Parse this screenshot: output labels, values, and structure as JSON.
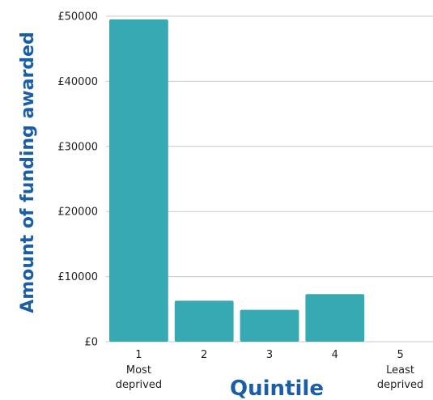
{
  "colors": {
    "bar": "#36a9b3",
    "axis_title": "#1a5ea8",
    "gridline": "#c8c8c8",
    "text": "#222222"
  },
  "chart_data": {
    "type": "bar",
    "categories": [
      "1",
      "2",
      "3",
      "4",
      "5"
    ],
    "category_sublabels": [
      [
        "Most",
        "deprived"
      ],
      [],
      [],
      [],
      [
        "Least",
        "deprived"
      ]
    ],
    "values": [
      49500,
      6300,
      4900,
      7300,
      0
    ],
    "xlabel": "Quintile",
    "ylabel": "Amount of funding awarded",
    "ylim": [
      0,
      50000
    ],
    "yticks": [
      0,
      10000,
      20000,
      30000,
      40000,
      50000
    ],
    "ytick_labels": [
      "£0",
      "£10000",
      "£20000",
      "£30000",
      "£40000",
      "£50000"
    ],
    "grid": true,
    "legend": "none"
  }
}
